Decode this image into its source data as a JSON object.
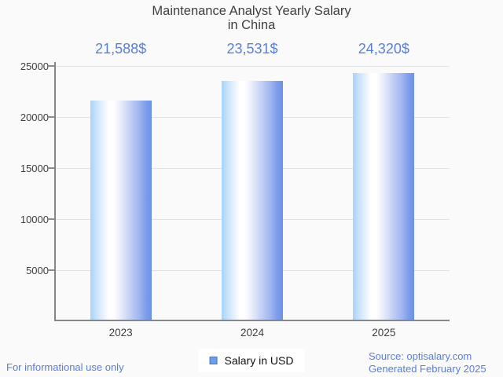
{
  "chart_data": {
    "type": "bar",
    "title": "Maintenance Analyst Yearly Salary in China",
    "title_lines": [
      "Maintenance Analyst Yearly Salary",
      "in China"
    ],
    "categories": [
      "2023",
      "2024",
      "2025"
    ],
    "values": [
      21588,
      23531,
      24320
    ],
    "value_labels": [
      "21,588$",
      "23,531$",
      "24,320$"
    ],
    "series": [
      {
        "name": "Salary in USD",
        "values": [
          21588,
          23531,
          24320
        ]
      }
    ],
    "xlabel": "",
    "ylabel": "",
    "ylim": [
      0,
      25000
    ],
    "yticks": [
      5000,
      10000,
      15000,
      20000,
      25000
    ],
    "ytick_labels_top_down": [
      "25000",
      "20000",
      "15000",
      "10000",
      "5000"
    ],
    "grid": true,
    "legend_position": "bottom-center",
    "bar_color_gradient": [
      "#a9d3f9",
      "#ffffff",
      "#6a93e8"
    ]
  },
  "legend": {
    "swatch_color": "#6d9eeb",
    "label": "Salary in USD"
  },
  "footer": {
    "left": "For informational use only",
    "source": "Source: optisalary.com",
    "generated": "Generated February 2025"
  },
  "colors": {
    "background": "#fafafa",
    "title_text": "#404040",
    "value_label_text": "#5b7ed7",
    "axis": "#878787",
    "gridline": "#e2e2e2",
    "tick_label_text": "#3f3f3f",
    "footer_text": "#5b7ed7"
  }
}
